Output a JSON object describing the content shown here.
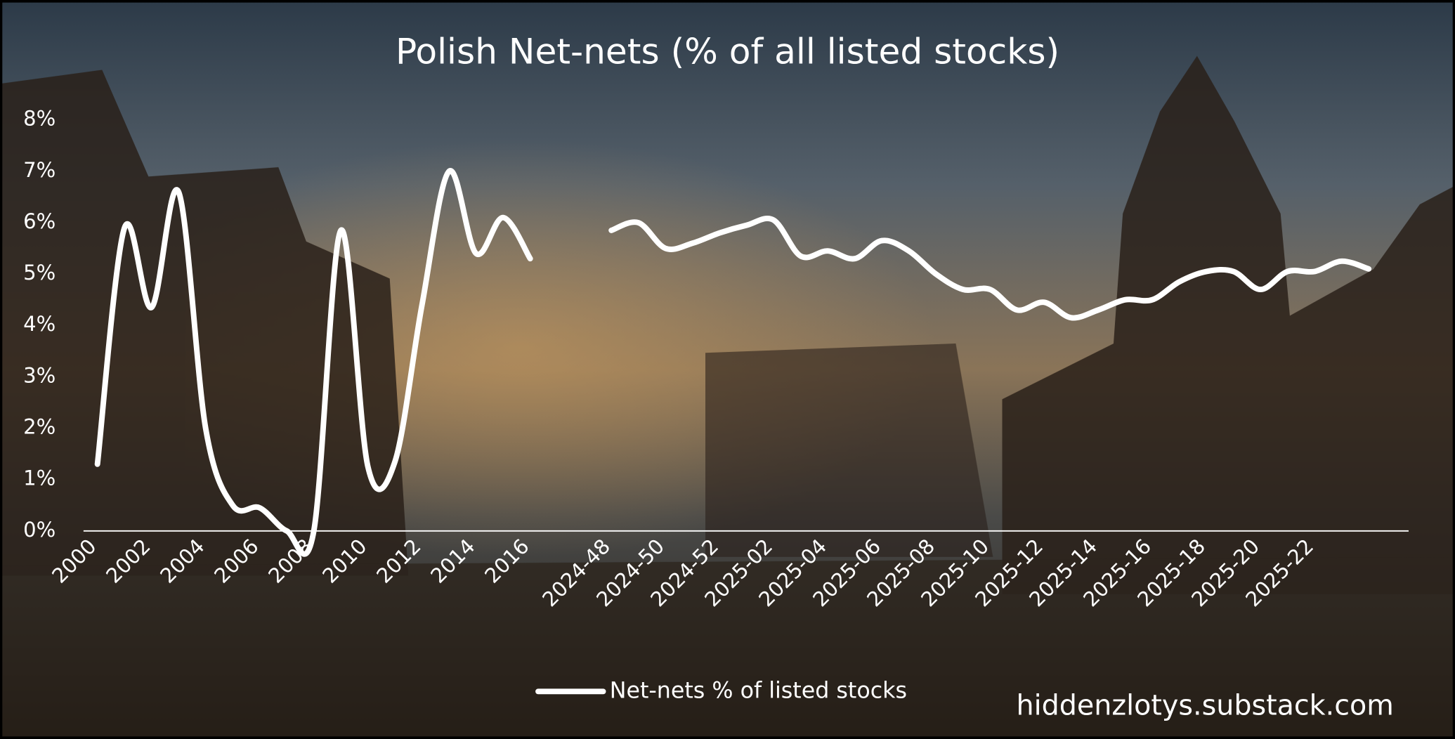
{
  "chart_data": {
    "type": "line",
    "title": "Polish Net-nets (% of all listed stocks)",
    "annotation": "hiddenzlotys.substack.com",
    "categories": [
      "2000",
      null,
      "2002",
      null,
      "2004",
      null,
      "2006",
      null,
      "2008",
      null,
      "2010",
      null,
      "2012",
      null,
      "2014",
      null,
      "2016",
      null,
      null,
      "2024-48",
      null,
      "2024-50",
      null,
      "2024-52",
      null,
      "2025-02",
      null,
      "2025-04",
      null,
      "2025-06",
      null,
      "2025-08",
      null,
      "2025-10",
      null,
      "2025-12",
      null,
      "2025-14",
      null,
      "2025-16",
      null,
      "2025-18",
      null,
      "2025-20",
      null,
      "2025-22",
      null,
      null
    ],
    "series": [
      {
        "name": "Net-nets % of listed stocks",
        "color": "#ffffff",
        "values": [
          1.3,
          5.9,
          4.35,
          6.6,
          2.0,
          0.5,
          0.45,
          0.0,
          0.0,
          5.85,
          1.25,
          1.35,
          4.4,
          7.0,
          5.4,
          6.1,
          5.3,
          null,
          null,
          5.85,
          6.0,
          5.5,
          5.6,
          5.8,
          5.95,
          6.05,
          5.35,
          5.45,
          5.3,
          5.65,
          5.45,
          5.0,
          4.7,
          4.7,
          4.3,
          4.45,
          4.15,
          4.3,
          4.5,
          4.5,
          4.85,
          5.05,
          5.05,
          4.7,
          5.05,
          5.05,
          5.25,
          5.1
        ]
      }
    ],
    "ylim": [
      0,
      8
    ],
    "yticks": [
      {
        "value": 0,
        "label": "0%"
      },
      {
        "value": 1,
        "label": "1%"
      },
      {
        "value": 2,
        "label": "2%"
      },
      {
        "value": 3,
        "label": "3%"
      },
      {
        "value": 4,
        "label": "4%"
      },
      {
        "value": 5,
        "label": "5%"
      },
      {
        "value": 6,
        "label": "6%"
      },
      {
        "value": 7,
        "label": "7%"
      },
      {
        "value": 8,
        "label": "8%"
      }
    ],
    "grid": false,
    "legend": "bottom"
  }
}
